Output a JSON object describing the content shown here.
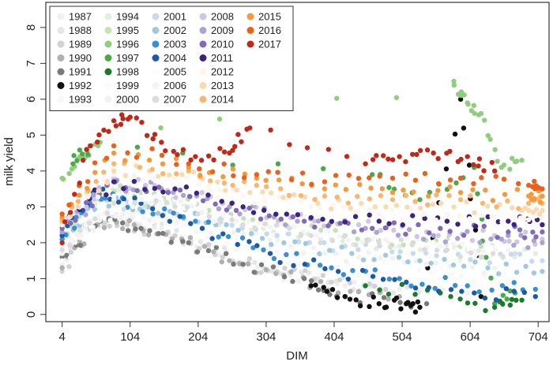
{
  "chart_data": {
    "type": "scatter",
    "title": "",
    "xlabel": "DIM",
    "ylabel": "milk yield",
    "xlim": [
      -20,
      720
    ],
    "ylim": [
      -0.2,
      8.7
    ],
    "x_ticks": [
      4,
      104,
      204,
      304,
      404,
      504,
      604,
      704
    ],
    "y_ticks": [
      0,
      1,
      2,
      3,
      4,
      5,
      6,
      7,
      8
    ],
    "grid": false,
    "legend_position": "top-left",
    "legend_columns": 5,
    "series": [
      {
        "name": "1987",
        "color": "#f0f0f0",
        "points": [
          [
            4,
            1.4
          ],
          [
            40,
            2.5
          ],
          [
            90,
            2.7
          ],
          [
            150,
            2.4
          ],
          [
            210,
            1.9
          ],
          [
            280,
            1.4
          ],
          [
            340,
            1.1
          ],
          [
            420,
            0.8
          ],
          [
            500,
            0.7
          ],
          [
            600,
            0.6
          ]
        ]
      },
      {
        "name": "1988",
        "color": "#e6e6e6",
        "points": [
          [
            4,
            1.3
          ],
          [
            45,
            2.6
          ],
          [
            95,
            2.6
          ],
          [
            160,
            2.3
          ],
          [
            230,
            1.8
          ],
          [
            300,
            1.3
          ],
          [
            380,
            1.0
          ],
          [
            460,
            0.8
          ],
          [
            560,
            0.6
          ]
        ]
      },
      {
        "name": "1989",
        "color": "#d2d2d2",
        "points": [
          [
            4,
            1.2
          ],
          [
            50,
            2.4
          ],
          [
            100,
            2.5
          ],
          [
            170,
            2.2
          ],
          [
            240,
            1.6
          ],
          [
            320,
            1.2
          ],
          [
            400,
            0.9
          ],
          [
            480,
            0.7
          ]
        ]
      },
      {
        "name": "1990",
        "color": "#b0b0b0",
        "points": [
          [
            4,
            1.3
          ],
          [
            55,
            2.5
          ],
          [
            110,
            2.5
          ],
          [
            180,
            2.1
          ],
          [
            250,
            1.5
          ],
          [
            330,
            1.1
          ],
          [
            410,
            0.6
          ],
          [
            500,
            0.5
          ]
        ]
      },
      {
        "name": "1991",
        "color": "#7a7a7a",
        "points": [
          [
            4,
            1.6
          ],
          [
            60,
            2.6
          ],
          [
            120,
            2.4
          ],
          [
            190,
            2.0
          ],
          [
            270,
            1.4
          ],
          [
            360,
            1.0
          ],
          [
            420,
            0.5
          ],
          [
            540,
            0.3
          ]
        ]
      },
      {
        "name": "1992",
        "color": "#111111",
        "points": [
          [
            370,
            0.8
          ],
          [
            420,
            0.5
          ],
          [
            470,
            0.3
          ],
          [
            510,
            0.3
          ],
          [
            530,
            0.2
          ],
          [
            590,
            6.0
          ],
          [
            620,
            0.5
          ]
        ]
      },
      {
        "name": "1993",
        "color": "#f8f8f8",
        "points": [
          [
            4,
            1.5
          ],
          [
            60,
            2.8
          ],
          [
            110,
            2.8
          ],
          [
            200,
            2.3
          ],
          [
            290,
            1.8
          ],
          [
            380,
            1.4
          ],
          [
            470,
            1.2
          ],
          [
            560,
            1.0
          ],
          [
            660,
            0.9
          ]
        ]
      },
      {
        "name": "1994",
        "color": "#e2efdc",
        "points": [
          [
            4,
            2.0
          ],
          [
            60,
            3.4
          ],
          [
            110,
            3.3
          ],
          [
            200,
            2.8
          ],
          [
            300,
            2.4
          ],
          [
            400,
            2.1
          ],
          [
            500,
            1.9
          ],
          [
            600,
            1.8
          ],
          [
            700,
            1.7
          ]
        ]
      },
      {
        "name": "1995",
        "color": "#c4e3b6",
        "points": [
          [
            4,
            2.2
          ],
          [
            60,
            3.5
          ],
          [
            120,
            3.4
          ],
          [
            220,
            2.9
          ],
          [
            320,
            2.5
          ],
          [
            420,
            2.2
          ],
          [
            520,
            2.0
          ],
          [
            620,
            1.9
          ]
        ]
      },
      {
        "name": "1996",
        "color": "#8fce7d",
        "points": [
          [
            4,
            3.8
          ],
          [
            30,
            4.4
          ],
          [
            60,
            4.8
          ],
          [
            580,
            6.5
          ],
          [
            600,
            5.9
          ],
          [
            620,
            5.6
          ],
          [
            650,
            4.1
          ],
          [
            680,
            4.3
          ]
        ]
      },
      {
        "name": "1997",
        "color": "#4aaa4a",
        "points": [
          [
            20,
            4.2
          ],
          [
            45,
            4.7
          ],
          [
            460,
            3.9
          ],
          [
            530,
            3.2
          ],
          [
            610,
            4.1
          ],
          [
            640,
            0.3
          ],
          [
            670,
            0.6
          ]
        ]
      },
      {
        "name": "1998",
        "color": "#1a7a2e",
        "points": [
          [
            450,
            0.8
          ],
          [
            560,
            0.6
          ],
          [
            640,
            0.2
          ],
          [
            680,
            0.4
          ]
        ]
      },
      {
        "name": "1999",
        "color": "#fbfbfb",
        "points": [
          [
            4,
            1.8
          ],
          [
            70,
            3.0
          ],
          [
            130,
            2.9
          ],
          [
            230,
            2.4
          ],
          [
            330,
            2.0
          ],
          [
            430,
            1.7
          ],
          [
            530,
            1.5
          ],
          [
            630,
            1.4
          ]
        ]
      },
      {
        "name": "2000",
        "color": "#f2f2f2",
        "points": [
          [
            4,
            1.7
          ],
          [
            70,
            2.9
          ],
          [
            140,
            2.8
          ],
          [
            240,
            2.3
          ],
          [
            340,
            1.9
          ],
          [
            440,
            1.6
          ],
          [
            540,
            1.4
          ],
          [
            640,
            1.3
          ]
        ]
      },
      {
        "name": "2001",
        "color": "#c6dbef",
        "points": [
          [
            4,
            2.1
          ],
          [
            60,
            3.3
          ],
          [
            120,
            3.1
          ],
          [
            220,
            2.6
          ],
          [
            320,
            2.2
          ],
          [
            420,
            1.9
          ],
          [
            520,
            1.7
          ],
          [
            620,
            1.6
          ],
          [
            710,
            1.5
          ]
        ]
      },
      {
        "name": "2002",
        "color": "#9ecae1",
        "points": [
          [
            4,
            2.0
          ],
          [
            60,
            3.2
          ],
          [
            130,
            3.0
          ],
          [
            230,
            2.5
          ],
          [
            330,
            2.0
          ],
          [
            430,
            1.7
          ],
          [
            530,
            1.5
          ],
          [
            630,
            1.3
          ],
          [
            710,
            1.2
          ]
        ]
      },
      {
        "name": "2003",
        "color": "#3a8fd0",
        "points": [
          [
            4,
            2.1
          ],
          [
            50,
            3.3
          ],
          [
            110,
            3.1
          ],
          [
            200,
            2.6
          ],
          [
            300,
            1.8
          ],
          [
            400,
            1.3
          ],
          [
            500,
            1.0
          ],
          [
            600,
            0.8
          ],
          [
            700,
            0.7
          ]
        ]
      },
      {
        "name": "2004",
        "color": "#1b5aa6",
        "points": [
          [
            4,
            2.2
          ],
          [
            50,
            3.4
          ],
          [
            120,
            3.1
          ],
          [
            210,
            2.4
          ],
          [
            310,
            1.7
          ],
          [
            410,
            1.2
          ],
          [
            510,
            0.9
          ],
          [
            610,
            0.6
          ],
          [
            700,
            0.5
          ]
        ]
      },
      {
        "name": "2005",
        "color": "#fdfdfd",
        "points": [
          [
            4,
            2.0
          ],
          [
            80,
            3.3
          ],
          [
            150,
            3.2
          ],
          [
            250,
            2.7
          ],
          [
            350,
            2.4
          ],
          [
            450,
            2.2
          ],
          [
            550,
            2.0
          ],
          [
            650,
            1.9
          ]
        ]
      },
      {
        "name": "2006",
        "color": "#f4f4f4",
        "points": [
          [
            4,
            1.9
          ],
          [
            80,
            3.2
          ],
          [
            160,
            3.1
          ],
          [
            260,
            2.6
          ],
          [
            360,
            2.3
          ],
          [
            460,
            2.1
          ],
          [
            560,
            1.9
          ],
          [
            660,
            1.8
          ]
        ]
      },
      {
        "name": "2007",
        "color": "#dcdcdc",
        "points": [
          [
            4,
            1.8
          ],
          [
            80,
            3.1
          ],
          [
            170,
            3.0
          ],
          [
            270,
            2.5
          ],
          [
            370,
            2.2
          ],
          [
            470,
            2.0
          ],
          [
            570,
            1.8
          ],
          [
            670,
            1.7
          ]
        ]
      },
      {
        "name": "2008",
        "color": "#cfc6e6",
        "points": [
          [
            4,
            2.4
          ],
          [
            70,
            3.7
          ],
          [
            140,
            3.6
          ],
          [
            240,
            3.1
          ],
          [
            340,
            2.7
          ],
          [
            440,
            2.5
          ],
          [
            540,
            2.3
          ],
          [
            640,
            2.2
          ],
          [
            710,
            2.1
          ]
        ]
      },
      {
        "name": "2009",
        "color": "#ada2d4",
        "points": [
          [
            4,
            2.3
          ],
          [
            70,
            3.6
          ],
          [
            150,
            3.5
          ],
          [
            250,
            3.0
          ],
          [
            350,
            2.6
          ],
          [
            450,
            2.4
          ],
          [
            550,
            2.2
          ],
          [
            650,
            2.1
          ],
          [
            710,
            2.0
          ]
        ]
      },
      {
        "name": "2010",
        "color": "#7f6bb8",
        "points": [
          [
            4,
            2.4
          ],
          [
            70,
            3.6
          ],
          [
            160,
            3.4
          ],
          [
            260,
            2.9
          ],
          [
            360,
            2.6
          ],
          [
            460,
            2.4
          ],
          [
            560,
            2.4
          ],
          [
            660,
            2.3
          ],
          [
            710,
            2.3
          ]
        ]
      },
      {
        "name": "2011",
        "color": "#3b2380",
        "points": [
          [
            4,
            2.5
          ],
          [
            80,
            3.7
          ],
          [
            170,
            3.5
          ],
          [
            270,
            3.0
          ],
          [
            370,
            2.7
          ],
          [
            470,
            2.6
          ],
          [
            570,
            2.6
          ],
          [
            660,
            2.6
          ],
          [
            710,
            2.5
          ]
        ]
      },
      {
        "name": "2012",
        "color": "#fff5eb",
        "points": [
          [
            4,
            2.5
          ],
          [
            80,
            3.9
          ],
          [
            170,
            3.8
          ],
          [
            270,
            3.3
          ],
          [
            370,
            3.0
          ],
          [
            470,
            2.8
          ],
          [
            570,
            2.8
          ],
          [
            670,
            2.7
          ],
          [
            710,
            2.7
          ]
        ]
      },
      {
        "name": "2013",
        "color": "#fdd9b0",
        "points": [
          [
            4,
            2.6
          ],
          [
            80,
            4.0
          ],
          [
            180,
            3.9
          ],
          [
            280,
            3.4
          ],
          [
            380,
            3.1
          ],
          [
            480,
            3.0
          ],
          [
            580,
            3.0
          ],
          [
            680,
            2.9
          ],
          [
            710,
            2.9
          ]
        ]
      },
      {
        "name": "2014",
        "color": "#f9b66e",
        "points": [
          [
            4,
            2.6
          ],
          [
            80,
            4.2
          ],
          [
            190,
            4.0
          ],
          [
            290,
            3.6
          ],
          [
            390,
            3.3
          ],
          [
            490,
            3.2
          ],
          [
            590,
            3.2
          ],
          [
            690,
            3.1
          ],
          [
            710,
            3.1
          ]
        ]
      },
      {
        "name": "2015",
        "color": "#f59a3b",
        "points": [
          [
            4,
            2.7
          ],
          [
            80,
            4.5
          ],
          [
            190,
            4.1
          ],
          [
            290,
            3.8
          ],
          [
            390,
            3.5
          ],
          [
            490,
            3.4
          ],
          [
            590,
            3.4
          ],
          [
            690,
            3.3
          ],
          [
            710,
            3.3
          ]
        ]
      },
      {
        "name": "2016",
        "color": "#e9611a",
        "points": [
          [
            4,
            2.8
          ],
          [
            80,
            4.7
          ],
          [
            190,
            4.2
          ],
          [
            290,
            3.9
          ],
          [
            390,
            3.7
          ],
          [
            490,
            3.8
          ],
          [
            590,
            3.8
          ],
          [
            690,
            3.6
          ],
          [
            710,
            3.5
          ]
        ]
      },
      {
        "name": "2017",
        "color": "#c0281a",
        "points": [
          [
            4,
            2.0
          ],
          [
            40,
            4.6
          ],
          [
            80,
            5.4
          ],
          [
            104,
            5.5
          ],
          [
            150,
            4.8
          ],
          [
            200,
            4.4
          ],
          [
            250,
            4.5
          ],
          [
            280,
            5.2
          ],
          [
            450,
            4.2
          ],
          [
            500,
            4.4
          ],
          [
            550,
            4.5
          ],
          [
            600,
            4.4
          ],
          [
            640,
            4.0
          ]
        ]
      }
    ]
  }
}
